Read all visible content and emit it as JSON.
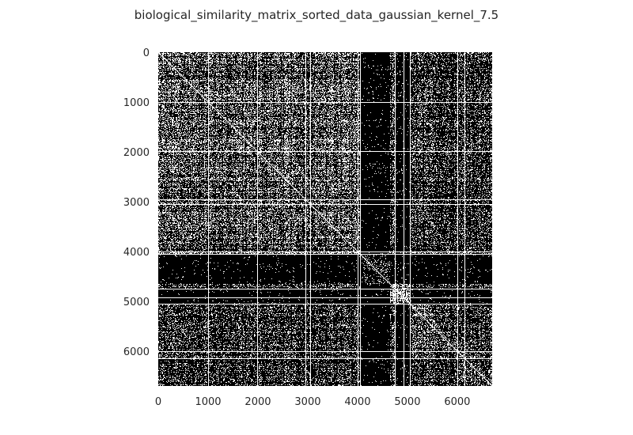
{
  "chart_data": {
    "type": "heatmap",
    "title": "biological_similarity_matrix_sorted_data_gaussian_kernel_7.5",
    "xlabel": "",
    "ylabel": "",
    "xlim": [
      0,
      6700
    ],
    "ylim": [
      6700,
      0
    ],
    "matrix_size": 6700,
    "colormap": [
      "#000000",
      "#ffffff"
    ],
    "grid": false,
    "x_ticks": [
      {
        "value": 0,
        "label": "0"
      },
      {
        "value": 1000,
        "label": "1000"
      },
      {
        "value": 2000,
        "label": "2000"
      },
      {
        "value": 3000,
        "label": "3000"
      },
      {
        "value": 4000,
        "label": "4000"
      },
      {
        "value": 5000,
        "label": "5000"
      },
      {
        "value": 6000,
        "label": "6000"
      }
    ],
    "y_ticks": [
      {
        "value": 0,
        "label": "0"
      },
      {
        "value": 1000,
        "label": "1000"
      },
      {
        "value": 2000,
        "label": "2000"
      },
      {
        "value": 3000,
        "label": "3000"
      },
      {
        "value": 4000,
        "label": "4000"
      },
      {
        "value": 5000,
        "label": "5000"
      },
      {
        "value": 6000,
        "label": "6000"
      }
    ],
    "blocks": [
      {
        "start": 0,
        "end": 4050,
        "density": 0.5
      },
      {
        "start": 4050,
        "end": 4650,
        "density": 0.2
      },
      {
        "start": 4650,
        "end": 5050,
        "density": 0.7
      },
      {
        "start": 5050,
        "end": 6000,
        "density": 0.45
      },
      {
        "start": 6000,
        "end": 6700,
        "density": 0.45
      }
    ],
    "dark_bands": [
      {
        "axis": "x",
        "start": 4050,
        "end": 4650
      },
      {
        "axis": "x",
        "start": 4750,
        "end": 5050
      },
      {
        "axis": "y",
        "start": 4050,
        "end": 4650
      },
      {
        "axis": "y",
        "start": 4750,
        "end": 5050
      }
    ],
    "white_lines": [
      1000,
      1980,
      2950,
      3050,
      4000,
      4050,
      4750,
      4920,
      5050,
      6000,
      6150
    ],
    "diagonal": "white"
  }
}
